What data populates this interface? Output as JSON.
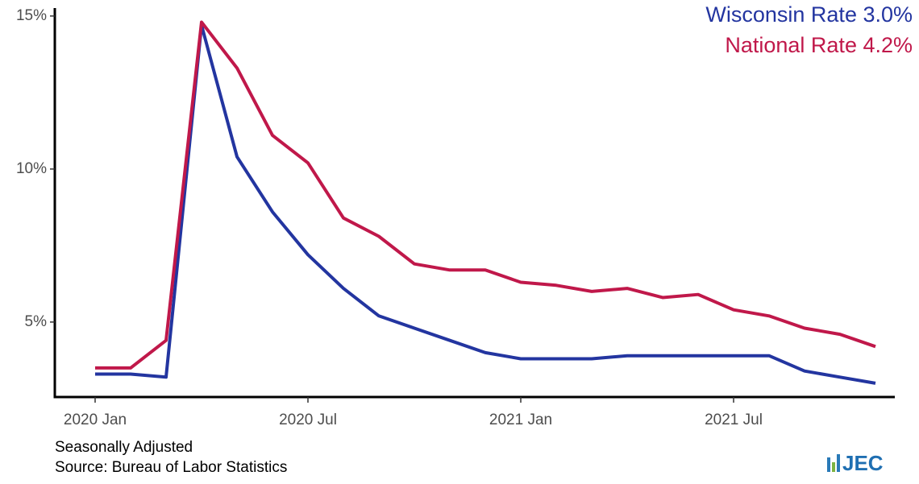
{
  "chart_data": {
    "type": "line",
    "categories": [
      "2020 Jan",
      null,
      null,
      null,
      null,
      null,
      "2020 Jul",
      null,
      null,
      null,
      null,
      null,
      "2021 Jan",
      null,
      null,
      null,
      null,
      null,
      "2021 Jul",
      null,
      null,
      null,
      null
    ],
    "series": [
      {
        "name": "Wisconsin Rate 3.0%",
        "color": "#2335a0",
        "values": [
          3.3,
          3.3,
          3.2,
          14.7,
          10.4,
          8.6,
          7.2,
          6.1,
          5.2,
          4.8,
          4.4,
          4.0,
          3.8,
          3.8,
          3.8,
          3.9,
          3.9,
          3.9,
          3.9,
          3.9,
          3.4,
          3.2,
          3.0
        ]
      },
      {
        "name": "National Rate 4.2%",
        "color": "#c0184a",
        "values": [
          3.5,
          3.5,
          4.4,
          14.8,
          13.3,
          11.1,
          10.2,
          8.4,
          7.8,
          6.9,
          6.7,
          6.7,
          6.3,
          6.2,
          6.0,
          6.1,
          5.8,
          5.9,
          5.4,
          5.2,
          4.8,
          4.6,
          4.2
        ]
      }
    ],
    "ylim": [
      2.55,
      15.26
    ],
    "yticks": [
      {
        "value": 5,
        "label": "5%"
      },
      {
        "value": 10,
        "label": "10%"
      },
      {
        "value": 15,
        "label": "15%"
      }
    ],
    "grid": false,
    "legend": "top-right",
    "notes": [
      "Seasonally Adjusted",
      "Source: Bureau of Labor Statistics"
    ],
    "logo": "JEC"
  }
}
